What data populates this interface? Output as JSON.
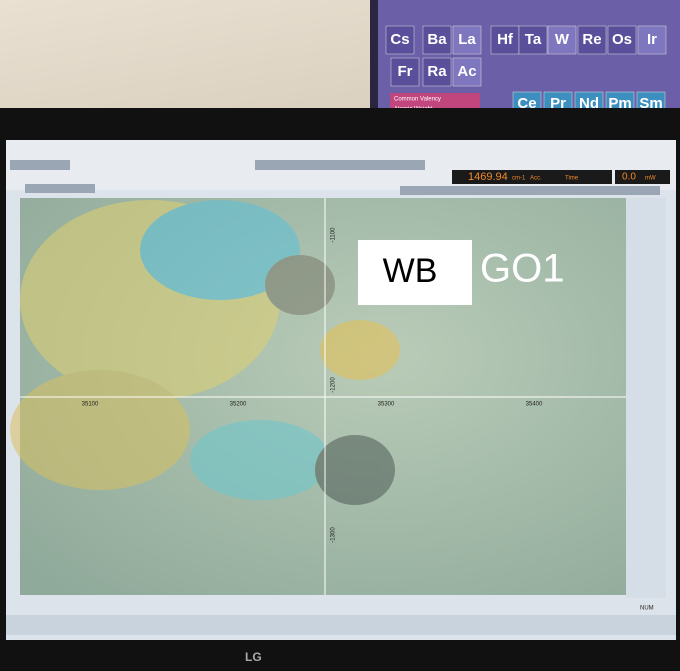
{
  "poster": {
    "elements": [
      "Cs",
      "Ba",
      "La",
      "Hf",
      "Ta",
      "W",
      "Re",
      "Os",
      "Ir",
      "Fr",
      "Ra",
      "Ac"
    ],
    "lanthanides": [
      "Ce",
      "Pr",
      "Nd",
      "Pm",
      "Sm"
    ],
    "legend": [
      "Common Valency",
      "Atomic Weight"
    ]
  },
  "toolbar": {
    "wavenumber": "1469.94",
    "unit": "cm-1",
    "acc": "Acc.",
    "time": "Time",
    "power": "0.0",
    "power_unit": "mW"
  },
  "image": {
    "x_labels": [
      "35100",
      "35200",
      "35300",
      "35400"
    ],
    "y_labels": [
      "-1100",
      "-1200",
      "-1300"
    ],
    "annotation": {
      "label": "WB",
      "sample": "GO1"
    }
  },
  "status": {
    "num": "NUM"
  },
  "monitor": {
    "brand": "LG"
  }
}
